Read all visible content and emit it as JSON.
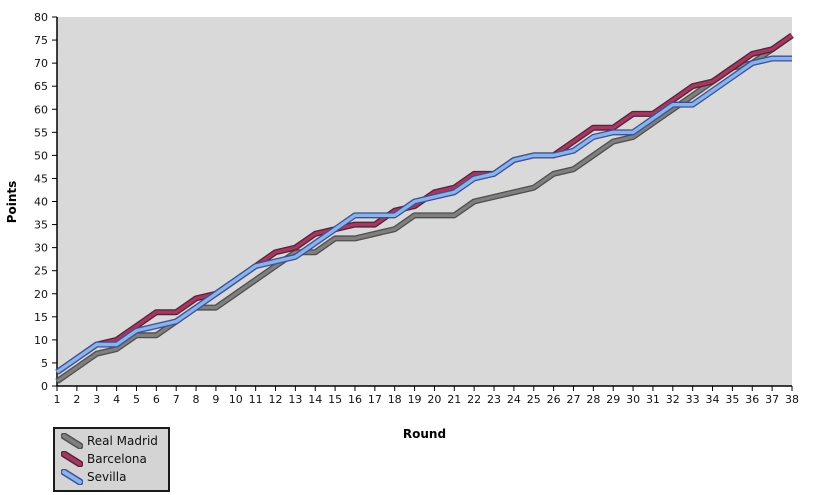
{
  "chart_data": {
    "type": "line",
    "title": "",
    "xlabel": "Round",
    "ylabel": "Points",
    "x": [
      1,
      2,
      3,
      4,
      5,
      6,
      7,
      8,
      9,
      10,
      11,
      12,
      13,
      14,
      15,
      16,
      17,
      18,
      19,
      20,
      21,
      22,
      23,
      24,
      25,
      26,
      27,
      28,
      29,
      30,
      31,
      32,
      33,
      34,
      35,
      36,
      37,
      38
    ],
    "ylim": [
      0,
      80
    ],
    "ytick_step": 5,
    "grid": false,
    "legend_position": "bottom-left",
    "plot_bg": "#d9d9d9",
    "axis_color": "#000000",
    "tick_label_color": "#111111",
    "series": [
      {
        "name": "Real Madrid",
        "color": "#7f7f7f",
        "outline": "#4f4f4f",
        "values": [
          1,
          4,
          7,
          8,
          11,
          11,
          14,
          17,
          17,
          20,
          23,
          26,
          29,
          29,
          32,
          32,
          33,
          34,
          37,
          37,
          37,
          40,
          41,
          42,
          43,
          46,
          47,
          50,
          53,
          54,
          57,
          60,
          63,
          66,
          69,
          70,
          73,
          76
        ]
      },
      {
        "name": "Barcelona",
        "color": "#a03a5f",
        "outline": "#5e1f3a",
        "values": [
          3,
          6,
          9,
          10,
          13,
          16,
          16,
          19,
          20,
          23,
          26,
          29,
          30,
          33,
          34,
          35,
          35,
          38,
          39,
          42,
          43,
          46,
          46,
          49,
          50,
          50,
          53,
          56,
          56,
          59,
          59,
          62,
          65,
          66,
          69,
          72,
          73,
          76
        ]
      },
      {
        "name": "Sevilla",
        "color": "#8ab4e4",
        "outline": "#3b4fa0",
        "values": [
          3,
          6,
          9,
          9,
          12,
          13,
          14,
          17,
          20,
          23,
          26,
          27,
          28,
          31,
          34,
          37,
          37,
          37,
          40,
          41,
          42,
          45,
          46,
          49,
          50,
          50,
          51,
          54,
          55,
          55,
          58,
          61,
          61,
          64,
          67,
          70,
          71,
          71
        ]
      }
    ]
  }
}
